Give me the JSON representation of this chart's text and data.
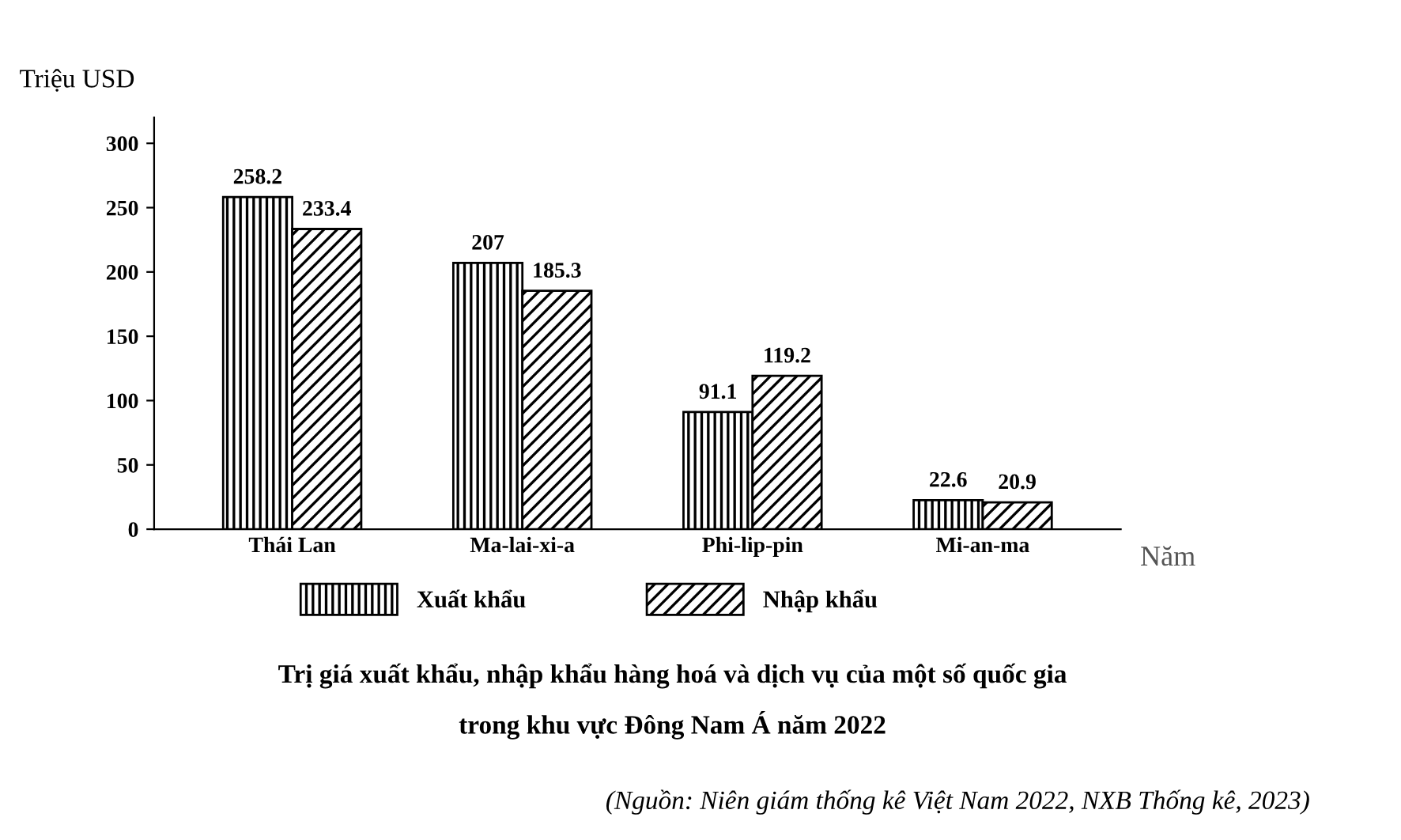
{
  "chart_data": {
    "type": "bar",
    "title": "Trị giá xuất khẩu, nhập khẩu hàng hoá và dịch vụ của một số quốc gia\ntrong khu vực Đông Nam Á năm 2022",
    "ylabel": "Triệu USD",
    "xlabel": "Năm",
    "categories": [
      "Thái Lan",
      "Ma-lai-xi-a",
      "Phi-lip-pin",
      "Mi-an-ma"
    ],
    "series": [
      {
        "name": "Xuất khẩu",
        "color": "#000000",
        "values": [
          258.2,
          207,
          91.1,
          22.6
        ]
      },
      {
        "name": "Nhập khẩu",
        "color": "#000000",
        "values": [
          233.4,
          185.3,
          119.2,
          20.9
        ]
      }
    ],
    "ylim": [
      0,
      320
    ],
    "yticks": [
      0,
      50,
      100,
      150,
      200,
      250,
      300
    ],
    "grid": false,
    "legend": "bottom",
    "data_labels": true,
    "annotations": [
      "(Nguồn: Niên giám thống kê Việt Nam 2022, NXB Thống kê, 2023)"
    ]
  }
}
